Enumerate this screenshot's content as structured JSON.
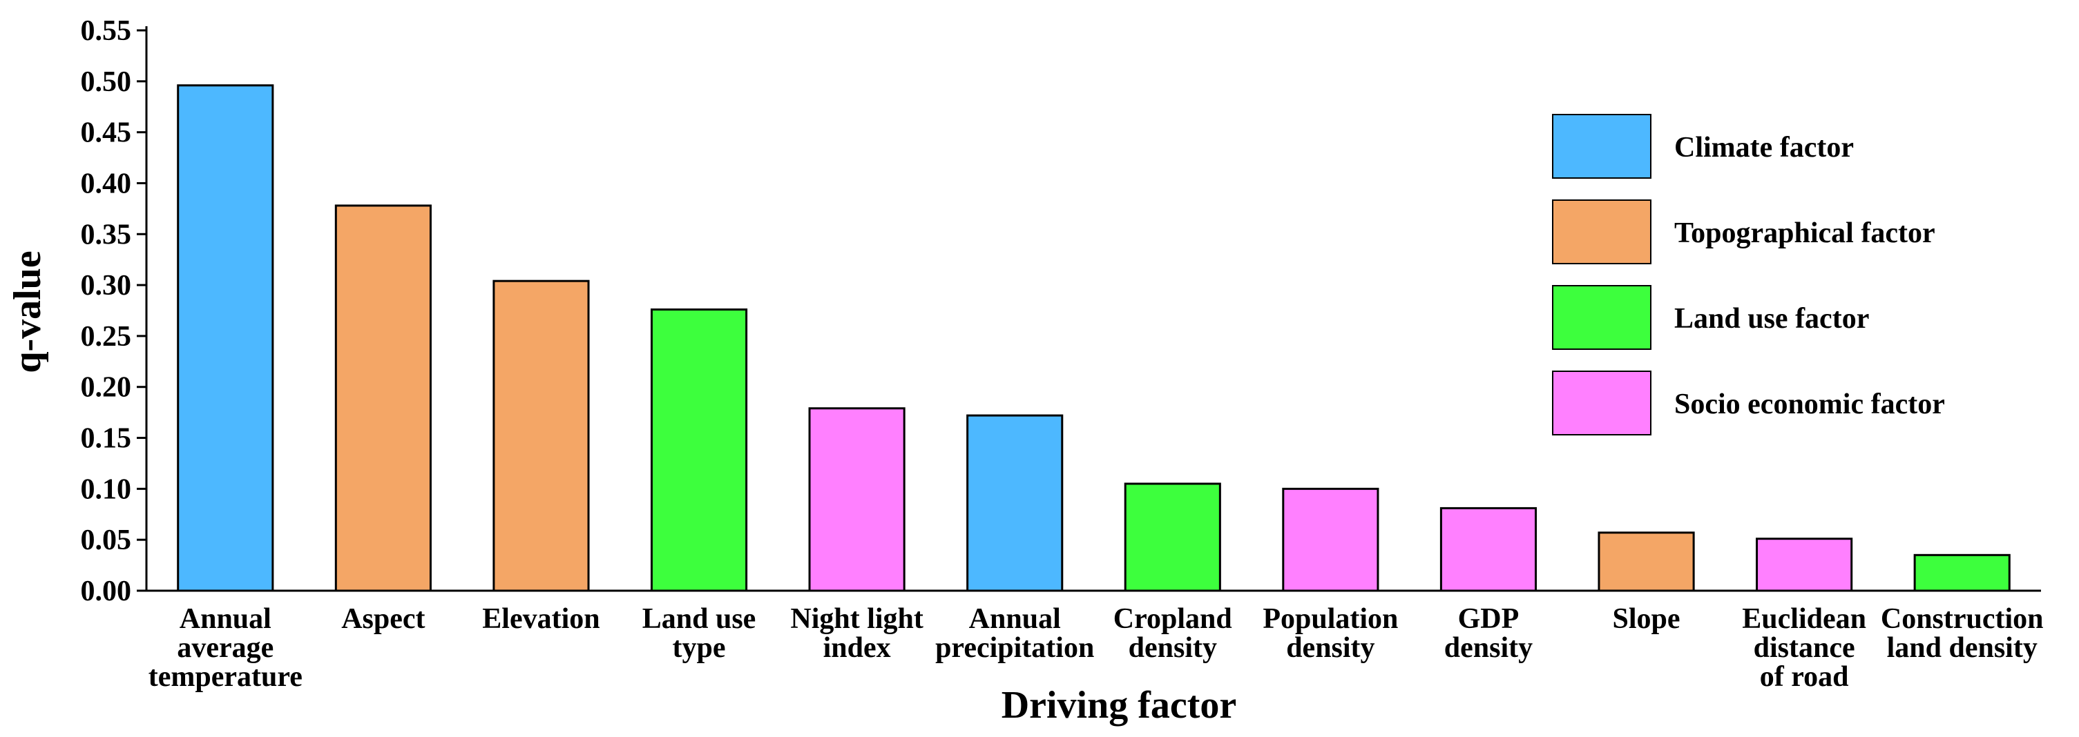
{
  "chart_data": {
    "type": "bar",
    "xlabel": "Driving factor",
    "ylabel": "q-value",
    "ylim": [
      0,
      0.55
    ],
    "yticks": [
      "0.00",
      "0.05",
      "0.10",
      "0.15",
      "0.20",
      "0.25",
      "0.30",
      "0.35",
      "0.40",
      "0.45",
      "0.50",
      "0.55"
    ],
    "categories": [
      [
        "Annual",
        "average",
        "temperature"
      ],
      [
        "Aspect"
      ],
      [
        "Elevation"
      ],
      [
        "Land use",
        "type"
      ],
      [
        "Night light",
        "index"
      ],
      [
        "Annual",
        "precipitation"
      ],
      [
        "Cropland",
        "density"
      ],
      [
        "Population",
        "density"
      ],
      [
        "GDP",
        "density"
      ],
      [
        "Slope"
      ],
      [
        "Euclidean",
        "distance",
        "of road"
      ],
      [
        "Construction",
        "land density"
      ]
    ],
    "values": [
      0.496,
      0.378,
      0.304,
      0.276,
      0.179,
      0.172,
      0.105,
      0.1,
      0.081,
      0.057,
      0.051,
      0.035
    ],
    "groups": [
      "climate",
      "topo",
      "topo",
      "landuse",
      "socio",
      "climate",
      "landuse",
      "socio",
      "socio",
      "topo",
      "socio",
      "landuse"
    ],
    "legend": [
      {
        "key": "climate",
        "label": "Climate factor",
        "color": "#4DB8FF"
      },
      {
        "key": "topo",
        "label": "Topographical factor",
        "color": "#F4A666"
      },
      {
        "key": "landuse",
        "label": "Land use factor",
        "color": "#3DFF3D"
      },
      {
        "key": "socio",
        "label": "Socio economic factor",
        "color": "#FF80FF"
      }
    ],
    "legend_position": "top-right"
  }
}
